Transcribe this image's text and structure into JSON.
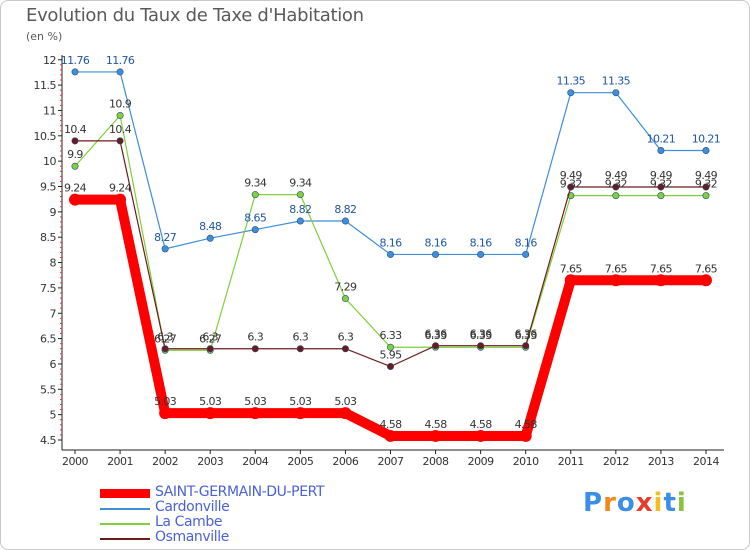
{
  "title": "Evolution du Taux de Taxe d'Habitation",
  "unit_label": "(en %)",
  "brand": {
    "text": "Proxiti",
    "letters": [
      "P",
      "r",
      "o",
      "x",
      "i",
      "t",
      "i"
    ],
    "colors": [
      "#3a8ee6",
      "#f08a1c",
      "#3a8ee6",
      "#e63c2c",
      "#f0c020",
      "#3a8ee6",
      "#8ac040"
    ]
  },
  "chart_data": {
    "type": "line",
    "title": "Evolution du Taux de Taxe d'Habitation",
    "ylabel": "(en %)",
    "xlabel": "",
    "x": [
      "2000",
      "2001",
      "2002",
      "2003",
      "2004",
      "2005",
      "2006",
      "2007",
      "2008",
      "2009",
      "2010",
      "2011",
      "2012",
      "2013",
      "2014"
    ],
    "ylim": [
      4.5,
      12
    ],
    "yticks": [
      "4.5",
      "5",
      "5.5",
      "6",
      "6.5",
      "7",
      "7.5",
      "8",
      "8.5",
      "9",
      "9.5",
      "10",
      "10.5",
      "11",
      "11.5",
      "12"
    ],
    "grid": false,
    "legend_position": "bottom-left",
    "series": [
      {
        "name": "SAINT-GERMAIN-DU-PERT",
        "color": "#ff0000",
        "values": [
          9.24,
          9.24,
          5.03,
          5.03,
          5.03,
          5.03,
          5.03,
          4.58,
          4.58,
          4.58,
          4.58,
          7.65,
          7.65,
          7.65,
          7.65
        ],
        "labels": [
          "9.24",
          "9.24",
          "5.03",
          "5.03",
          "5.03",
          "5.03",
          "5.03",
          "4.58",
          "4.58",
          "4.58",
          "4.58",
          "7.65",
          "7.65",
          "7.65",
          "7.65"
        ]
      },
      {
        "name": "Cardonville",
        "color": "#3e8ed8",
        "values": [
          11.76,
          11.76,
          8.27,
          8.48,
          8.65,
          8.82,
          8.82,
          8.16,
          8.16,
          8.16,
          8.16,
          11.35,
          11.35,
          10.21,
          10.21
        ],
        "labels": [
          "11.76",
          "11.76",
          "8.27",
          "8.48",
          "8.65",
          "8.82",
          "8.82",
          "8.16",
          "8.16",
          "8.16",
          "8.16",
          "11.35",
          "11.35",
          "10.21",
          "10.21"
        ]
      },
      {
        "name": "La Cambe",
        "color": "#7fd03a",
        "values": [
          9.9,
          10.9,
          6.27,
          6.27,
          9.34,
          9.34,
          7.29,
          6.33,
          6.33,
          6.33,
          6.33,
          9.32,
          9.32,
          9.32,
          9.32
        ],
        "labels": [
          "9.9",
          "10.9",
          "6.27",
          "6.27",
          "9.34",
          "9.34",
          "7.29",
          "6.33",
          "6.33",
          "6.33",
          "6.33",
          "9.32",
          "9.32",
          "9.32",
          "9.32"
        ]
      },
      {
        "name": "Osmanville",
        "color": "#6e1a1a",
        "values": [
          10.4,
          10.4,
          6.3,
          6.3,
          6.3,
          6.3,
          6.3,
          5.95,
          6.36,
          6.36,
          6.36,
          9.49,
          9.49,
          9.49,
          9.49
        ],
        "labels": [
          "10.4",
          "10.4",
          "6.3",
          "6.3",
          "6.3",
          "6.3",
          "6.3",
          "5.95",
          "6.36",
          "6.36",
          "6.36",
          "9.49",
          "9.49",
          "9.49",
          "9.49"
        ]
      }
    ]
  }
}
